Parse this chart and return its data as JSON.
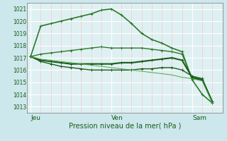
{
  "bg_color": "#cce8ec",
  "plot_bg_color": "#dff0f2",
  "grid_color_major": "#ffffff",
  "grid_color_minor": "#f0c8cc",
  "line_color_dark": "#1a5c1a",
  "line_color_mid": "#2d7a2d",
  "xlabel": "Pression niveau de la mer( hPa )",
  "xtick_labels": [
    "Jeu",
    "Ven",
    "Sam"
  ],
  "xtick_positions": [
    0,
    24,
    48
  ],
  "ytick_values": [
    1013,
    1014,
    1015,
    1016,
    1017,
    1018,
    1019,
    1020,
    1021
  ],
  "ylim": [
    1012.5,
    1021.5
  ],
  "xlim": [
    -1,
    57
  ],
  "series": [
    {
      "x": [
        0,
        3,
        6,
        9,
        12,
        15,
        18,
        21,
        24,
        27,
        30,
        33,
        36,
        39,
        42,
        45,
        48,
        51,
        54
      ],
      "y": [
        1017.1,
        1019.6,
        1019.8,
        1020.0,
        1020.2,
        1020.4,
        1020.6,
        1020.9,
        1021.0,
        1020.5,
        1019.8,
        1019.0,
        1018.5,
        1018.2,
        1017.8,
        1017.5,
        1015.2,
        1014.0,
        1013.3
      ],
      "color": "#2d7a2d",
      "lw": 1.2,
      "marker": "+"
    },
    {
      "x": [
        0,
        3,
        6,
        9,
        12,
        15,
        18,
        21,
        24,
        27,
        30,
        33,
        36,
        39,
        42,
        45,
        48,
        51,
        54
      ],
      "y": [
        1017.1,
        1017.3,
        1017.4,
        1017.5,
        1017.6,
        1017.7,
        1017.8,
        1017.9,
        1017.8,
        1017.8,
        1017.8,
        1017.8,
        1017.7,
        1017.6,
        1017.5,
        1017.3,
        1015.3,
        1015.2,
        1013.4
      ],
      "color": "#2d7a2d",
      "lw": 1.0,
      "marker": "+"
    },
    {
      "x": [
        0,
        3,
        6,
        9,
        12,
        15,
        18,
        21,
        24,
        27,
        30,
        33,
        36,
        39,
        42,
        45,
        48,
        51,
        54
      ],
      "y": [
        1017.1,
        1016.8,
        1016.7,
        1016.6,
        1016.5,
        1016.5,
        1016.5,
        1016.5,
        1016.5,
        1016.6,
        1016.6,
        1016.7,
        1016.8,
        1016.9,
        1017.0,
        1016.8,
        1015.4,
        1015.2,
        1013.4
      ],
      "color": "#1a5c1a",
      "lw": 1.5,
      "marker": "+"
    },
    {
      "x": [
        0,
        3,
        6,
        9,
        12,
        15,
        18,
        21,
        24,
        27,
        30,
        33,
        36,
        39,
        42,
        45,
        48,
        51,
        54
      ],
      "y": [
        1017.1,
        1016.7,
        1016.5,
        1016.3,
        1016.2,
        1016.1,
        1016.0,
        1016.0,
        1016.0,
        1016.0,
        1016.0,
        1016.1,
        1016.1,
        1016.2,
        1016.2,
        1016.0,
        1015.5,
        1015.3,
        1013.4
      ],
      "color": "#1a5c1a",
      "lw": 1.0,
      "marker": "+"
    },
    {
      "x": [
        0,
        3,
        6,
        9,
        12,
        15,
        18,
        21,
        24,
        27,
        30,
        33,
        36,
        39,
        42,
        45,
        48,
        51,
        54
      ],
      "y": [
        1017.1,
        1016.9,
        1016.8,
        1016.7,
        1016.6,
        1016.5,
        1016.4,
        1016.3,
        1016.2,
        1016.1,
        1016.0,
        1015.9,
        1015.8,
        1015.7,
        1015.6,
        1015.4,
        1015.3,
        1015.1,
        1013.3
      ],
      "color": "#4aaa4a",
      "lw": 0.7,
      "marker": null
    }
  ]
}
